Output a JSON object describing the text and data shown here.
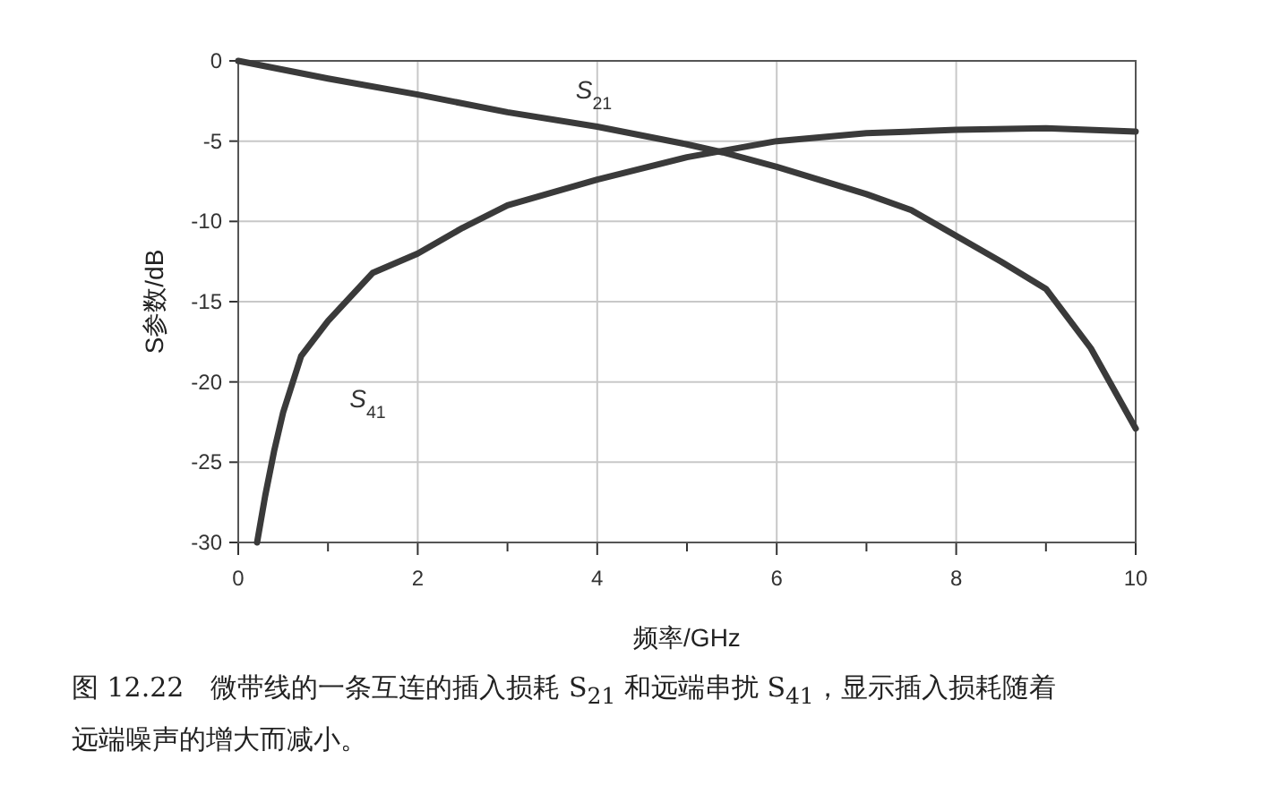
{
  "chart_data": {
    "type": "line",
    "xlabel": "频率/GHz",
    "ylabel": "S参数/dB",
    "annotations": [
      "图 12.22　微带线的一条互连的插入损耗 S$_{21}$ 和远端串扰 S$_{41}$，显示插入损耗随着远端噪声的增大而减小。"
    ],
    "xlim": [
      0,
      10
    ],
    "xticks": [
      0,
      {
        "value": 1,
        "label": null
      },
      2,
      {
        "value": 3,
        "label": null
      },
      4,
      {
        "value": 5,
        "label": null
      },
      6,
      {
        "value": 7,
        "label": null
      },
      8,
      {
        "value": 9,
        "label": null
      },
      10
    ],
    "ylim": [
      -30,
      0
    ],
    "yticks": [
      0,
      -5,
      -10,
      -15,
      -20,
      -25,
      -30
    ],
    "grid": true,
    "legend": false,
    "marker": "none",
    "line_style": "solid",
    "series": [
      {
        "name": "S$_{21}$",
        "color": "#3a3a3a",
        "x": [
          0,
          1,
          2,
          3,
          4,
          5,
          5.4,
          6,
          7,
          7.5,
          8,
          8.5,
          9,
          9.5,
          10
        ],
        "values": [
          0,
          -1.1,
          -2.1,
          -3.2,
          -4.1,
          -5.2,
          -5.7,
          -6.6,
          -8.3,
          -9.3,
          -10.9,
          -12.5,
          -14.2,
          -17.9,
          -22.9
        ]
      },
      {
        "name": "S$_{41}$",
        "color": "#3a3a3a",
        "x": [
          0.21,
          0.3,
          0.4,
          0.5,
          0.7,
          1,
          1.5,
          2,
          2.5,
          3,
          4,
          5,
          6,
          7,
          8,
          9,
          10
        ],
        "values": [
          -30,
          -27.1,
          -24.3,
          -21.9,
          -18.4,
          -16.2,
          -13.2,
          -12,
          -10.4,
          -9,
          -7.4,
          -6,
          -5,
          -4.5,
          -4.3,
          -4.2,
          -4.4
        ]
      }
    ]
  }
}
